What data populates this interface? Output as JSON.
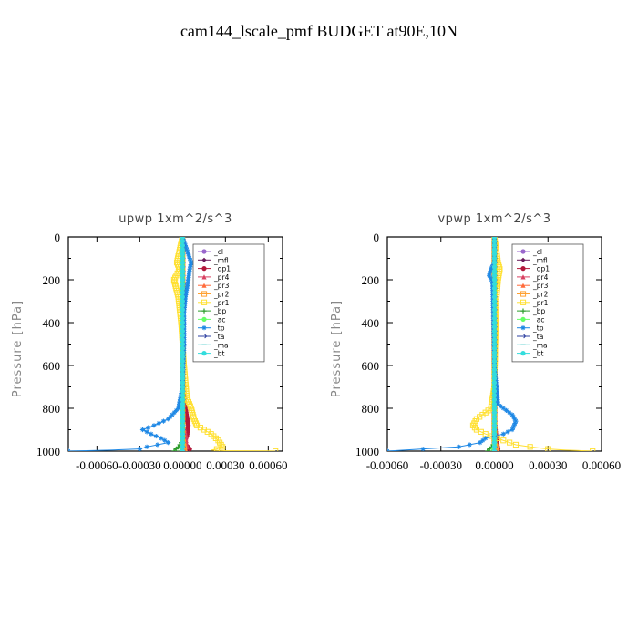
{
  "page_title": "cam144_lscale_pmf  BUDGET at90E,10N",
  "chart_data": [
    {
      "type": "line",
      "title": "upwp   1xm^2/s^3",
      "ylabel": "Pressure [hPa]",
      "xlabel": "",
      "ylim": [
        1000,
        0
      ],
      "xlim": [
        -0.0008,
        0.0007
      ],
      "y_ticks": [
        0,
        200,
        400,
        600,
        800,
        1000
      ],
      "x_ticks": [
        {
          "v": -0.0006,
          "label": "-0.00060"
        },
        {
          "v": -0.0003,
          "label": "-0.00030"
        },
        {
          "v": 0.0,
          "label": "0.00000"
        },
        {
          "v": 0.0003,
          "label": "0.00030"
        },
        {
          "v": 0.0006,
          "label": "0.00060"
        }
      ],
      "legend": {
        "placement": "top-right",
        "entries": [
          "_cl",
          "_mfl",
          "_dp1",
          "_pr4",
          "_pr3",
          "_pr2",
          "_pr1",
          "_bp",
          "_ac",
          "_tp",
          "_ta",
          "_ma",
          "_bt"
        ]
      },
      "series": [
        {
          "name": "_cl",
          "color": "#9966cc",
          "marker": "circle",
          "x": [
            0,
            0
          ],
          "y": [
            0,
            1000
          ]
        },
        {
          "name": "_mfl",
          "color": "#6a1b5a",
          "marker": "diamond",
          "x": [
            0,
            0,
            0,
            0,
            0,
            0,
            0,
            0,
            0,
            0,
            0
          ],
          "y": [
            0,
            100,
            200,
            300,
            400,
            500,
            600,
            700,
            800,
            900,
            1000
          ]
        },
        {
          "name": "_dp1",
          "color": "#b2183a",
          "marker": "circle",
          "x": [
            0,
            0,
            2e-05,
            4e-05,
            3e-05,
            1e-05,
            5e-05,
            2e-05
          ],
          "y": [
            0,
            700,
            800,
            880,
            930,
            960,
            990,
            1000
          ]
        },
        {
          "name": "_pr4",
          "color": "#d94060",
          "marker": "triangle",
          "x": [
            0,
            0,
            2e-05,
            3e-05,
            1e-05
          ],
          "y": [
            0,
            850,
            920,
            980,
            1000
          ]
        },
        {
          "name": "_pr3",
          "color": "#ff6a3a",
          "marker": "triangle",
          "x": [
            0,
            0,
            1e-05,
            2e-05,
            0
          ],
          "y": [
            0,
            880,
            950,
            990,
            1000
          ]
        },
        {
          "name": "_pr2",
          "color": "#ffa030",
          "marker": "square",
          "x": [
            0,
            0,
            1e-05,
            0
          ],
          "y": [
            0,
            950,
            990,
            1000
          ]
        },
        {
          "name": "_pr1",
          "color": "#ffe033",
          "marker": "square",
          "x": [
            0,
            -4e-05,
            -2e-05,
            -6e-05,
            -3e-05,
            -1e-05,
            1e-05,
            3e-05,
            6e-05,
            8e-05,
            0.0001,
            0.00015,
            0.0002,
            0.00025,
            0.00028,
            0.00024,
            0.0002,
            0.0003,
            0.0006,
            0.00065
          ],
          "y": [
            0,
            120,
            150,
            200,
            280,
            400,
            600,
            750,
            800,
            850,
            880,
            900,
            920,
            950,
            980,
            990,
            995,
            998,
            999,
            1000
          ]
        },
        {
          "name": "_bp",
          "color": "#2c9c2c",
          "marker": "cross",
          "x": [
            0,
            0,
            -3e-05,
            -6e-05,
            -2e-05
          ],
          "y": [
            0,
            950,
            980,
            1000,
            1000
          ]
        },
        {
          "name": "_ac",
          "color": "#66ff66",
          "marker": "circle",
          "x": [
            0,
            0,
            -1e-05,
            0
          ],
          "y": [
            0,
            980,
            995,
            1000
          ]
        },
        {
          "name": "_tp",
          "color": "#1e88e5",
          "marker": "star",
          "x": [
            0,
            6e-05,
            5e-05,
            4e-05,
            2e-05,
            1e-05,
            1e-05,
            0,
            -3e-05,
            -0.0001,
            -0.0002,
            -0.00028,
            -0.00022,
            -0.00015,
            -0.0001,
            -0.00025,
            -0.0003,
            -0.0005,
            -0.0008
          ],
          "y": [
            0,
            120,
            150,
            200,
            280,
            350,
            500,
            700,
            800,
            850,
            880,
            900,
            920,
            940,
            960,
            980,
            990,
            995,
            1000
          ]
        },
        {
          "name": "_ta",
          "color": "#2e40a0",
          "marker": "arrow",
          "x": [
            0,
            0
          ],
          "y": [
            0,
            1000
          ]
        },
        {
          "name": "_ma",
          "color": "#40c8c8",
          "marker": "dash",
          "x": [
            0,
            0
          ],
          "y": [
            0,
            1000
          ]
        },
        {
          "name": "_bt",
          "color": "#33dddd",
          "marker": "circle",
          "x": [
            0,
            0
          ],
          "y": [
            0,
            1000
          ]
        }
      ]
    },
    {
      "type": "line",
      "title": "vpwp   1xm^2/s^3",
      "ylabel": "Pressure [hPa]",
      "xlabel": "",
      "ylim": [
        1000,
        0
      ],
      "xlim": [
        -0.0006,
        0.0006
      ],
      "y_ticks": [
        0,
        200,
        400,
        600,
        800,
        1000
      ],
      "x_ticks": [
        {
          "v": -0.0006,
          "label": "-0.00060"
        },
        {
          "v": -0.0003,
          "label": "-0.00030"
        },
        {
          "v": 0.0,
          "label": "0.00000"
        },
        {
          "v": 0.0003,
          "label": "0.00030"
        },
        {
          "v": 0.0006,
          "label": "0.00060"
        }
      ],
      "legend": {
        "placement": "top-right",
        "entries": [
          "_cl",
          "_mfl",
          "_dp1",
          "_pr4",
          "_pr3",
          "_pr2",
          "_pr1",
          "_bp",
          "_ac",
          "_tp",
          "_ta",
          "_ma",
          "_bt"
        ]
      },
      "series": [
        {
          "name": "_cl",
          "color": "#9966cc",
          "marker": "circle",
          "x": [
            0,
            0
          ],
          "y": [
            0,
            1000
          ]
        },
        {
          "name": "_mfl",
          "color": "#6a1b5a",
          "marker": "diamond",
          "x": [
            0,
            0,
            0,
            0,
            0,
            0,
            0,
            0,
            0,
            0,
            0
          ],
          "y": [
            0,
            100,
            200,
            300,
            400,
            500,
            600,
            700,
            800,
            900,
            1000
          ]
        },
        {
          "name": "_dp1",
          "color": "#b2183a",
          "marker": "circle",
          "x": [
            0,
            0,
            1e-05,
            2e-05,
            1e-05
          ],
          "y": [
            0,
            850,
            940,
            990,
            1000
          ]
        },
        {
          "name": "_pr4",
          "color": "#d94060",
          "marker": "triangle",
          "x": [
            0,
            0,
            1e-05,
            0
          ],
          "y": [
            0,
            900,
            980,
            1000
          ]
        },
        {
          "name": "_pr3",
          "color": "#ff6a3a",
          "marker": "triangle",
          "x": [
            0,
            0,
            1e-05,
            0
          ],
          "y": [
            0,
            920,
            990,
            1000
          ]
        },
        {
          "name": "_pr2",
          "color": "#ffa030",
          "marker": "square",
          "x": [
            0,
            0,
            1e-05,
            0
          ],
          "y": [
            0,
            960,
            995,
            1000
          ]
        },
        {
          "name": "_pr1",
          "color": "#ffe033",
          "marker": "square",
          "x": [
            0,
            2e-05,
            3e-05,
            2e-05,
            1e-05,
            0,
            -2e-05,
            -5e-05,
            -0.0001,
            -0.00012,
            -0.0001,
            -5e-05,
            5e-05,
            0.00012,
            0.0002,
            0.0003,
            0.0004,
            0.00055
          ],
          "y": [
            0,
            120,
            150,
            200,
            300,
            700,
            800,
            820,
            850,
            880,
            900,
            920,
            950,
            970,
            980,
            990,
            995,
            1000
          ]
        },
        {
          "name": "_bp",
          "color": "#2c9c2c",
          "marker": "cross",
          "x": [
            0,
            0,
            -2e-05,
            -4e-05,
            -1e-05
          ],
          "y": [
            0,
            960,
            985,
            1000,
            1000
          ]
        },
        {
          "name": "_ac",
          "color": "#66ff66",
          "marker": "circle",
          "x": [
            0,
            0,
            -1e-05,
            0
          ],
          "y": [
            0,
            980,
            995,
            1000
          ]
        },
        {
          "name": "_tp",
          "color": "#1e88e5",
          "marker": "star",
          "x": [
            0,
            0,
            -2e-05,
            -3e-05,
            -1e-05,
            0,
            2e-05,
            5e-05,
            0.0001,
            0.00012,
            0.0001,
            5e-05,
            0,
            -5e-05,
            -8e-05,
            -0.0002,
            -0.0004,
            -0.0006
          ],
          "y": [
            0,
            120,
            150,
            180,
            210,
            600,
            780,
            800,
            830,
            860,
            900,
            920,
            930,
            940,
            960,
            980,
            990,
            1000
          ]
        },
        {
          "name": "_ta",
          "color": "#2e40a0",
          "marker": "arrow",
          "x": [
            0,
            0
          ],
          "y": [
            0,
            1000
          ]
        },
        {
          "name": "_ma",
          "color": "#40c8c8",
          "marker": "dash",
          "x": [
            0,
            0
          ],
          "y": [
            0,
            1000
          ]
        },
        {
          "name": "_bt",
          "color": "#33dddd",
          "marker": "circle",
          "x": [
            0,
            0
          ],
          "y": [
            0,
            1000
          ]
        }
      ]
    }
  ]
}
